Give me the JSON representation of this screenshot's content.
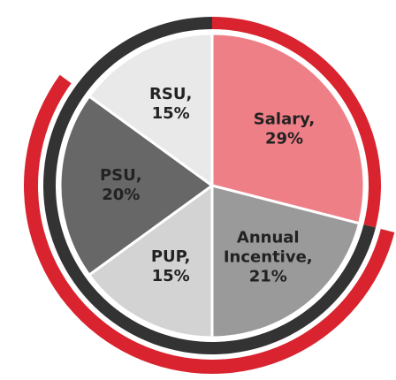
{
  "chart_data": {
    "type": "pie",
    "categories": [
      "Salary,",
      "Annual Incentive,",
      "PUP,",
      "PSU,",
      "RSU,"
    ],
    "values": [
      29,
      21,
      15,
      20,
      15
    ],
    "value_labels": [
      "29%",
      "21%",
      "15%",
      "20%",
      "15%"
    ],
    "colors": [
      "#ef7f87",
      "#9a9a9a",
      "#d3d3d3",
      "#676767",
      "#e9e9e9"
    ]
  }
}
